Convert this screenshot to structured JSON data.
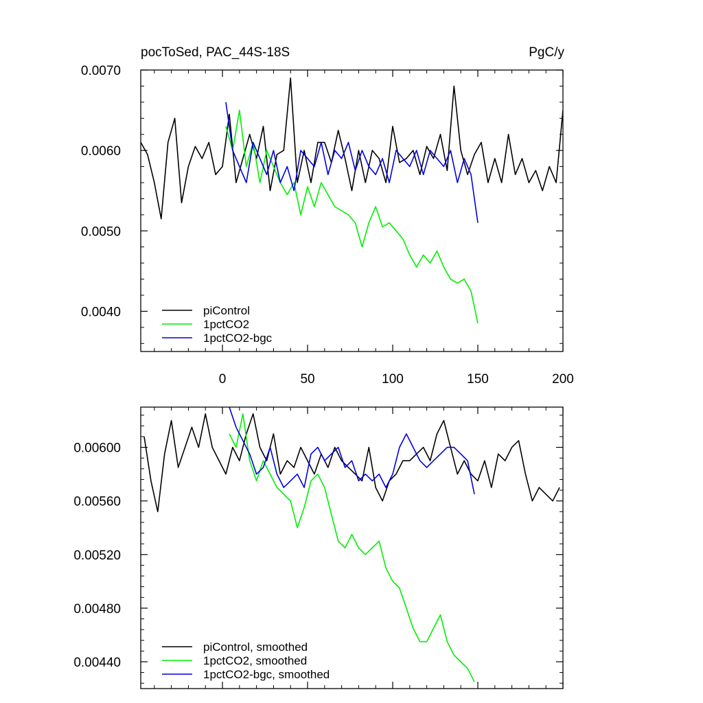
{
  "chart_data": [
    {
      "type": "line",
      "title_left": "pocToSed, PAC_44S-18S",
      "title_right": "PgC/y",
      "xlim": [
        -48,
        200
      ],
      "ylim": [
        0.0035,
        0.007
      ],
      "xticks": [
        0,
        50,
        100,
        150,
        200
      ],
      "xtick_labels": [
        "0",
        "50",
        "100",
        "150",
        "200"
      ],
      "yticks": [
        0.004,
        0.005,
        0.006,
        0.007
      ],
      "ytick_labels": [
        "0.0040",
        "0.0050",
        "0.0060",
        "0.0070"
      ],
      "legend_position": "bottom-left",
      "series": [
        {
          "name": "piControl",
          "color": "#000000",
          "x": [
            -48,
            -44,
            -40,
            -36,
            -32,
            -28,
            -24,
            -20,
            -16,
            -12,
            -8,
            -4,
            0,
            4,
            8,
            12,
            16,
            20,
            24,
            28,
            32,
            36,
            40,
            44,
            48,
            52,
            56,
            60,
            64,
            68,
            72,
            76,
            80,
            84,
            88,
            92,
            96,
            100,
            104,
            108,
            112,
            116,
            120,
            124,
            128,
            132,
            136,
            140,
            144,
            148,
            152,
            156,
            160,
            164,
            168,
            172,
            176,
            180,
            184,
            188,
            192,
            196,
            200
          ],
          "values": [
            0.0061,
            0.00595,
            0.0056,
            0.00515,
            0.0061,
            0.0064,
            0.00535,
            0.0058,
            0.00605,
            0.0059,
            0.0061,
            0.0057,
            0.0058,
            0.00645,
            0.0056,
            0.0059,
            0.0062,
            0.0059,
            0.0063,
            0.0055,
            0.00595,
            0.006,
            0.0069,
            0.0056,
            0.006,
            0.0056,
            0.0061,
            0.0061,
            0.00585,
            0.00625,
            0.0059,
            0.0055,
            0.006,
            0.0056,
            0.006,
            0.0059,
            0.0056,
            0.0063,
            0.00585,
            0.0059,
            0.006,
            0.0057,
            0.00605,
            0.0059,
            0.0062,
            0.00575,
            0.0068,
            0.006,
            0.0057,
            0.00595,
            0.0061,
            0.0056,
            0.0059,
            0.0056,
            0.0062,
            0.0057,
            0.0059,
            0.0056,
            0.00575,
            0.0055,
            0.0058,
            0.0056,
            0.0065
          ]
        },
        {
          "name": "1pctCO2",
          "color": "#00ee00",
          "x": [
            2,
            6,
            10,
            14,
            18,
            22,
            26,
            30,
            34,
            38,
            42,
            46,
            50,
            54,
            58,
            62,
            66,
            70,
            74,
            78,
            82,
            86,
            90,
            94,
            98,
            102,
            106,
            110,
            114,
            118,
            122,
            126,
            130,
            134,
            138,
            142,
            146,
            150
          ],
          "values": [
            0.0063,
            0.006,
            0.0065,
            0.0058,
            0.0061,
            0.0056,
            0.006,
            0.0058,
            0.0056,
            0.00545,
            0.0056,
            0.0052,
            0.00555,
            0.0053,
            0.0056,
            0.00545,
            0.0053,
            0.00525,
            0.0052,
            0.0051,
            0.0048,
            0.0051,
            0.0053,
            0.00505,
            0.0051,
            0.005,
            0.0049,
            0.0047,
            0.00455,
            0.0047,
            0.0046,
            0.00475,
            0.00455,
            0.0044,
            0.00435,
            0.0044,
            0.00425,
            0.00385
          ]
        },
        {
          "name": "1pctCO2-bgc",
          "color": "#0000dd",
          "x": [
            2,
            6,
            10,
            14,
            18,
            22,
            26,
            30,
            34,
            38,
            42,
            46,
            50,
            54,
            58,
            62,
            66,
            70,
            74,
            78,
            82,
            86,
            90,
            94,
            98,
            102,
            106,
            110,
            114,
            118,
            122,
            126,
            130,
            134,
            138,
            142,
            146,
            150
          ],
          "values": [
            0.0066,
            0.006,
            0.0058,
            0.0056,
            0.0061,
            0.0059,
            0.0057,
            0.006,
            0.0056,
            0.0058,
            0.0055,
            0.006,
            0.0059,
            0.0058,
            0.0061,
            0.0057,
            0.006,
            0.0059,
            0.0061,
            0.00575,
            0.006,
            0.0058,
            0.0057,
            0.0059,
            0.0056,
            0.006,
            0.0059,
            0.0058,
            0.006,
            0.0057,
            0.006,
            0.0059,
            0.0058,
            0.006,
            0.0056,
            0.0059,
            0.0057,
            0.0051
          ]
        }
      ]
    },
    {
      "type": "line",
      "xlim": [
        -48,
        200
      ],
      "ylim": [
        0.0042,
        0.0063
      ],
      "xticks": [
        0,
        50,
        100,
        150,
        200
      ],
      "yticks": [
        0.0044,
        0.0048,
        0.0052,
        0.0056,
        0.006
      ],
      "ytick_labels": [
        "0.00440",
        "0.00480",
        "0.00520",
        "0.00560",
        "0.00600"
      ],
      "legend_position": "bottom-left",
      "series": [
        {
          "name": "piControl, smoothed",
          "color": "#000000",
          "x": [
            -46,
            -42,
            -38,
            -34,
            -30,
            -26,
            -22,
            -18,
            -14,
            -10,
            -6,
            -2,
            2,
            6,
            10,
            14,
            18,
            22,
            26,
            30,
            34,
            38,
            42,
            46,
            50,
            54,
            58,
            62,
            66,
            70,
            74,
            78,
            82,
            86,
            90,
            94,
            98,
            102,
            106,
            110,
            114,
            118,
            122,
            126,
            130,
            134,
            138,
            142,
            146,
            150,
            154,
            158,
            162,
            166,
            170,
            174,
            178,
            182,
            186,
            190,
            194,
            198
          ],
          "values": [
            0.00608,
            0.00575,
            0.00552,
            0.00595,
            0.0062,
            0.00585,
            0.006,
            0.00615,
            0.006,
            0.00625,
            0.006,
            0.0059,
            0.0058,
            0.006,
            0.0059,
            0.0061,
            0.00625,
            0.006,
            0.0059,
            0.0061,
            0.0058,
            0.0059,
            0.00585,
            0.006,
            0.0059,
            0.0058,
            0.00595,
            0.00585,
            0.006,
            0.0059,
            0.00585,
            0.0058,
            0.00575,
            0.006,
            0.0057,
            0.0056,
            0.00575,
            0.0058,
            0.0059,
            0.0059,
            0.00595,
            0.006,
            0.0059,
            0.0061,
            0.0062,
            0.006,
            0.0058,
            0.0059,
            0.0058,
            0.00575,
            0.0059,
            0.0057,
            0.00595,
            0.0059,
            0.006,
            0.00605,
            0.0058,
            0.0056,
            0.0057,
            0.00565,
            0.0056,
            0.0057
          ]
        },
        {
          "name": "1pctCO2, smoothed",
          "color": "#00ee00",
          "x": [
            4,
            8,
            12,
            16,
            20,
            24,
            28,
            32,
            36,
            40,
            44,
            48,
            52,
            56,
            60,
            64,
            68,
            72,
            76,
            80,
            84,
            88,
            92,
            96,
            100,
            104,
            108,
            112,
            116,
            120,
            124,
            128,
            132,
            136,
            140,
            144,
            148
          ],
          "values": [
            0.0061,
            0.006,
            0.00625,
            0.0059,
            0.00575,
            0.0059,
            0.0058,
            0.0057,
            0.00565,
            0.0056,
            0.0054,
            0.00555,
            0.00575,
            0.0058,
            0.0057,
            0.0055,
            0.0053,
            0.00525,
            0.00535,
            0.00525,
            0.0052,
            0.00525,
            0.0053,
            0.0051,
            0.005,
            0.00495,
            0.0048,
            0.00465,
            0.00455,
            0.00455,
            0.00465,
            0.00475,
            0.00455,
            0.00445,
            0.0044,
            0.00435,
            0.00425
          ]
        },
        {
          "name": "1pctCO2-bgc, smoothed",
          "color": "#0000dd",
          "x": [
            4,
            8,
            12,
            16,
            20,
            24,
            28,
            32,
            36,
            40,
            44,
            48,
            52,
            56,
            60,
            64,
            68,
            72,
            76,
            80,
            84,
            88,
            92,
            96,
            100,
            104,
            108,
            112,
            116,
            120,
            124,
            128,
            132,
            136,
            140,
            144,
            148
          ],
          "values": [
            0.0063,
            0.00615,
            0.00605,
            0.00595,
            0.0058,
            0.00585,
            0.006,
            0.0058,
            0.0057,
            0.00575,
            0.0058,
            0.0057,
            0.00595,
            0.006,
            0.0059,
            0.00595,
            0.006,
            0.00585,
            0.0059,
            0.00575,
            0.0058,
            0.00575,
            0.0058,
            0.0057,
            0.0058,
            0.006,
            0.0061,
            0.006,
            0.0059,
            0.00585,
            0.0059,
            0.00595,
            0.006,
            0.006,
            0.00595,
            0.0059,
            0.00565
          ]
        }
      ]
    }
  ]
}
